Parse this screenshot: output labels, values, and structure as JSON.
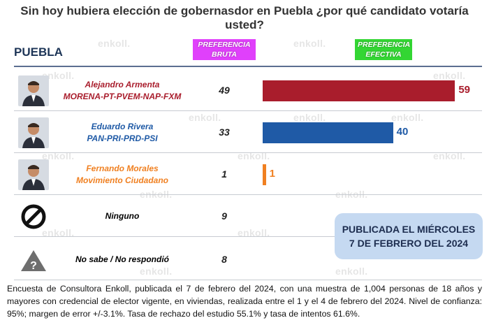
{
  "title": "Sin hoy hubiera elección de gobernasdor en Puebla ¿por qué candidato votaría usted?",
  "region": "PUEBLA",
  "headers": {
    "bruta": [
      "PREFERENCIA",
      "BRUTA"
    ],
    "efectiva": [
      "PREFERENCIA",
      "EFECTIVA"
    ],
    "bruta_color": "#e040fb",
    "efectiva_color": "#33d633"
  },
  "watermark": "enkoll.",
  "chart_data": {
    "type": "bar",
    "orientation": "horizontal",
    "title": "Sin hoy hubiera elección de gobernasdor en Puebla ¿por qué candidato votaría usted?",
    "categories": [
      "Alejandro Armenta MORENA-PT-PVEM-NAP-FXM",
      "Eduardo Rivera PAN-PRI-PRD-PSI",
      "Fernando Morales Movimiento Ciudadano",
      "Ninguno",
      "No sabe / No respondió"
    ],
    "series": [
      {
        "name": "PREFERENCIA BRUTA",
        "values": [
          49,
          33,
          1,
          9,
          8
        ]
      },
      {
        "name": "PREFERENCIA EFECTIVA",
        "values": [
          59,
          40,
          1,
          null,
          null
        ]
      }
    ],
    "xlim": [
      0,
      60
    ],
    "grid": false,
    "legend": "top"
  },
  "rows": [
    {
      "name": "Alejandro Armenta",
      "party": "MORENA-PT-PVEM-NAP-FXM",
      "bruta": "49",
      "efectiva": 59,
      "efectiva_label": "59",
      "color": "#a91d2c",
      "avatar": "person-photo"
    },
    {
      "name": "Eduardo Rivera",
      "party": "PAN-PRI-PRD-PSI",
      "bruta": "33",
      "efectiva": 40,
      "efectiva_label": "40",
      "color": "#1f5aa6",
      "avatar": "person-photo"
    },
    {
      "name": "Fernando Morales",
      "party": "Movimiento Ciudadano",
      "bruta": "1",
      "efectiva": 1,
      "efectiva_label": "1",
      "color": "#f08021",
      "avatar": "person-photo"
    },
    {
      "name": "Ninguno",
      "party": "",
      "bruta": "9",
      "efectiva": null,
      "efectiva_label": "",
      "color": "#000000",
      "avatar": "prohibited-icon"
    },
    {
      "name": "No sabe / No respondió",
      "party": "",
      "bruta": "8",
      "efectiva": null,
      "efectiva_label": "",
      "color": "#000000",
      "avatar": "warning-icon"
    }
  ],
  "note": {
    "line1": "PUBLICADA EL MIÉRCOLES",
    "line2": "7 DE FEBRERO DEL 2024"
  },
  "footer": "Encuesta de Consultora Enkoll, publicada el 7 de febrero del 2024, con una muestra de 1,004 personas de 18 años y mayores con credencial de elector vigente, en viviendas, realizada entre el 1 y el 4 de febrero del 2024. Nivel de confianza: 95%; margen de error +/-3.1%. Tasa de rechazo del estudio 55.1% y tasa de intentos 61.6%."
}
